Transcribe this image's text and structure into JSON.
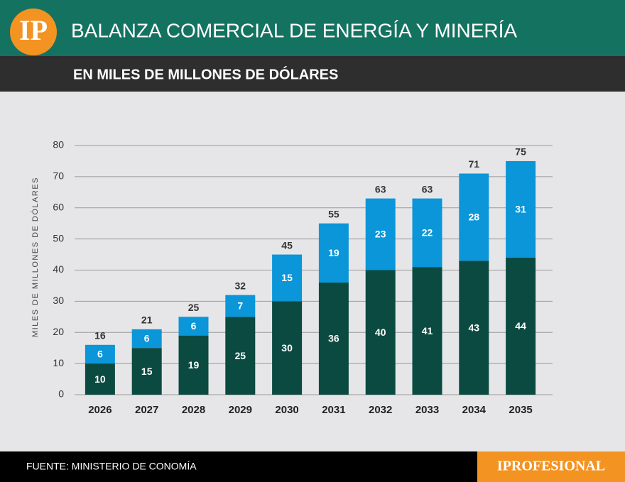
{
  "logo": "IP",
  "chart_data": {
    "type": "stacked_bar",
    "title": "BALANZA COMERCIAL DE ENERGÍA Y MINERÍA",
    "subtitle": "EN MILES DE MILLONES DE DÓLARES",
    "y_label": "MILES DE MILLONES DE DÓLARES",
    "categories": [
      "2026",
      "2027",
      "2028",
      "2029",
      "2030",
      "2031",
      "2032",
      "2033",
      "2034",
      "2035"
    ],
    "series": [
      {
        "color": "#0b4a40",
        "values": [
          10,
          15,
          19,
          25,
          30,
          36,
          40,
          41,
          43,
          44
        ]
      },
      {
        "color": "#0a96d8",
        "values": [
          6,
          6,
          6,
          7,
          15,
          19,
          23,
          22,
          28,
          31
        ]
      }
    ],
    "totals": [
      16,
      21,
      25,
      32,
      45,
      55,
      63,
      63,
      71,
      75
    ],
    "ylim": [
      0,
      80
    ],
    "yticks": [
      0,
      10,
      20,
      30,
      40,
      50,
      60,
      70,
      80
    ],
    "grid": true
  },
  "source": "FUENTE: MINISTERIO DE CONOMÍA",
  "brand": "IPROFESIONAL"
}
